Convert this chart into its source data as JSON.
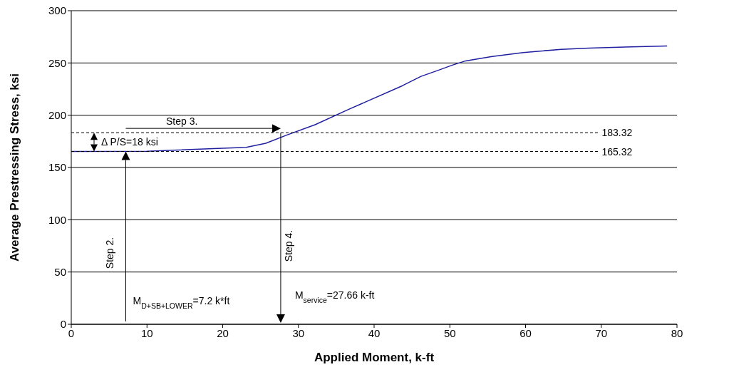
{
  "chart_data": {
    "type": "line",
    "xlabel": "Applied Moment, k-ft",
    "ylabel": "Average Prestressing Stress, ksi",
    "x": [
      0,
      10,
      23.1,
      25.7,
      28.5,
      32.2,
      36.6,
      43.7,
      46.2,
      48.4,
      50.4,
      52.1,
      53.9,
      55.6,
      59.7,
      64.7,
      68.4,
      73.1,
      78.7
    ],
    "series": [
      {
        "color": "#1f1fa0",
        "values": [
          165.3,
          165.5,
          169.3,
          173.2,
          181.1,
          190.9,
          205.5,
          228.1,
          237.2,
          242.8,
          248.1,
          252,
          254.2,
          256.2,
          260,
          263,
          264.2,
          265.2,
          266.2
        ]
      }
    ],
    "xlim": [
      0,
      80
    ],
    "xticks": [
      0,
      10,
      20,
      30,
      40,
      50,
      60,
      70,
      80
    ],
    "ylim": [
      0,
      300
    ],
    "yticks": [
      0,
      50,
      100,
      150,
      200,
      250,
      300
    ],
    "grid": "y",
    "marker": "none",
    "line_style": "solid",
    "ref_lines": [
      {
        "axis": "y",
        "value": 183.32,
        "label": "183.32",
        "color": "#000000",
        "line_style": "dashed"
      },
      {
        "axis": "y",
        "value": 165.32,
        "label": "165.32",
        "color": "#000000",
        "line_style": "dashed"
      }
    ],
    "annotations": [
      "Step 2.",
      "Step 3.",
      "Step 4.",
      "Δ P/S=18 ksi",
      "M$_{D+SB+LOWER}$=7.2 k*ft",
      "M$_{service}$=27.66 k-ft"
    ]
  }
}
